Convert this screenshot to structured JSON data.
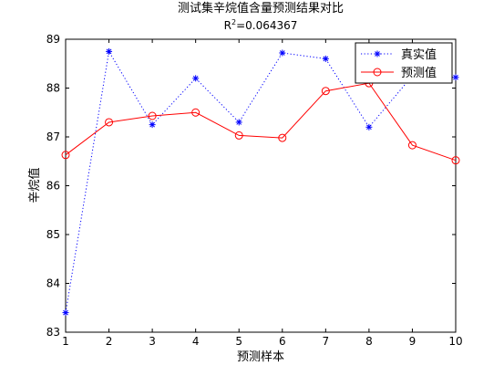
{
  "chart_data": {
    "type": "line",
    "title": "测试集辛烷值含量预测结果对比",
    "subtitle_base": "R",
    "subtitle_sup": "2",
    "subtitle_rest": "=0.064367",
    "xlabel": "预测样本",
    "ylabel": "辛烷值",
    "x": [
      1,
      2,
      3,
      4,
      5,
      6,
      7,
      8,
      9,
      10
    ],
    "xlim": [
      1,
      10
    ],
    "ylim": [
      83,
      89
    ],
    "xticks": [
      1,
      2,
      3,
      4,
      5,
      6,
      7,
      8,
      9,
      10
    ],
    "yticks": [
      83,
      84,
      85,
      86,
      87,
      88,
      89
    ],
    "grid": false,
    "legend_position": "top-right",
    "series": [
      {
        "name": "真实值",
        "values": [
          83.4,
          88.75,
          87.25,
          88.2,
          87.3,
          88.72,
          88.6,
          87.2,
          88.25,
          88.22
        ],
        "color": "#0000ff",
        "line_style": "dotted",
        "marker": "asterisk"
      },
      {
        "name": "预测值",
        "values": [
          86.63,
          87.3,
          87.43,
          87.5,
          87.03,
          86.98,
          87.94,
          88.1,
          86.83,
          86.52
        ],
        "color": "#ff0000",
        "line_style": "solid",
        "marker": "circle"
      }
    ]
  }
}
